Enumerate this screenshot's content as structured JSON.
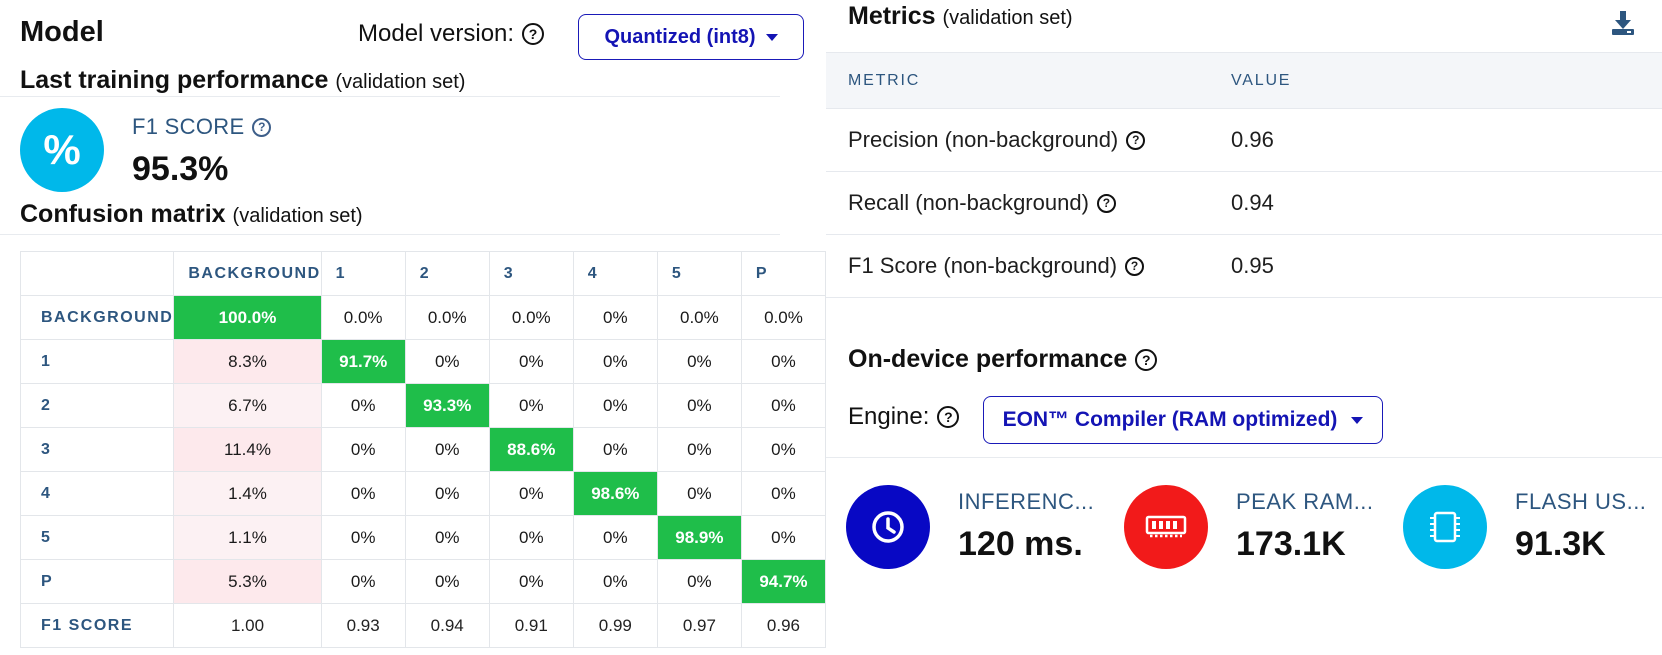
{
  "model": {
    "title": "Model",
    "version_label": "Model version:",
    "version_selected": "Quantized (int8)"
  },
  "last_training": {
    "title": "Last training performance",
    "subtitle": "(validation set)",
    "f1_icon": "%",
    "f1_label": "F1 SCORE",
    "f1_value": "95.3%"
  },
  "confusion": {
    "title": "Confusion matrix",
    "subtitle": "(validation set)",
    "columns": [
      "BACKGROUND",
      "1",
      "2",
      "3",
      "4",
      "5",
      "P"
    ],
    "rows": [
      {
        "label": "BACKGROUND",
        "cells": [
          "100.0%",
          "0.0%",
          "0.0%",
          "0.0%",
          "0%",
          "0.0%",
          "0.0%"
        ]
      },
      {
        "label": "1",
        "cells": [
          "8.3%",
          "91.7%",
          "0%",
          "0%",
          "0%",
          "0%",
          "0%"
        ]
      },
      {
        "label": "2",
        "cells": [
          "6.7%",
          "0%",
          "93.3%",
          "0%",
          "0%",
          "0%",
          "0%"
        ]
      },
      {
        "label": "3",
        "cells": [
          "11.4%",
          "0%",
          "0%",
          "88.6%",
          "0%",
          "0%",
          "0%"
        ]
      },
      {
        "label": "4",
        "cells": [
          "1.4%",
          "0%",
          "0%",
          "0%",
          "98.6%",
          "0%",
          "0%"
        ]
      },
      {
        "label": "5",
        "cells": [
          "1.1%",
          "0%",
          "0%",
          "0%",
          "0%",
          "98.9%",
          "0%"
        ]
      },
      {
        "label": "P",
        "cells": [
          "5.3%",
          "0%",
          "0%",
          "0%",
          "0%",
          "0%",
          "94.7%"
        ]
      }
    ],
    "f1_row": {
      "label": "F1 SCORE",
      "cells": [
        "1.00",
        "0.93",
        "0.94",
        "0.91",
        "0.99",
        "0.97",
        "0.96"
      ]
    }
  },
  "metrics": {
    "title": "Metrics",
    "subtitle": "(validation set)",
    "download_icon": "download-icon",
    "headers": {
      "metric": "METRIC",
      "value": "VALUE"
    },
    "rows": [
      {
        "name": "Precision (non-background)",
        "value": "0.96"
      },
      {
        "name": "Recall (non-background)",
        "value": "0.94"
      },
      {
        "name": "F1 Score (non-background)",
        "value": "0.95"
      }
    ]
  },
  "on_device": {
    "title": "On-device performance",
    "engine_label": "Engine:",
    "engine_selected": "EON™ Compiler (RAM optimized)",
    "stats": [
      {
        "label": "INFERENC...",
        "value": "120 ms.",
        "icon": "clock-icon",
        "color": "#0808c4"
      },
      {
        "label": "PEAK RAM...",
        "value": "173.1K",
        "icon": "ram-icon",
        "color": "#f21a1a"
      },
      {
        "label": "FLASH US...",
        "value": "91.3K",
        "icon": "chip-icon",
        "color": "#00b8ea"
      }
    ]
  },
  "colors": {
    "accent_blue": "#1414b4",
    "label_blue": "#2d567f",
    "diag_green": "#1fbe4a",
    "error_pink": "#fde9ec"
  }
}
